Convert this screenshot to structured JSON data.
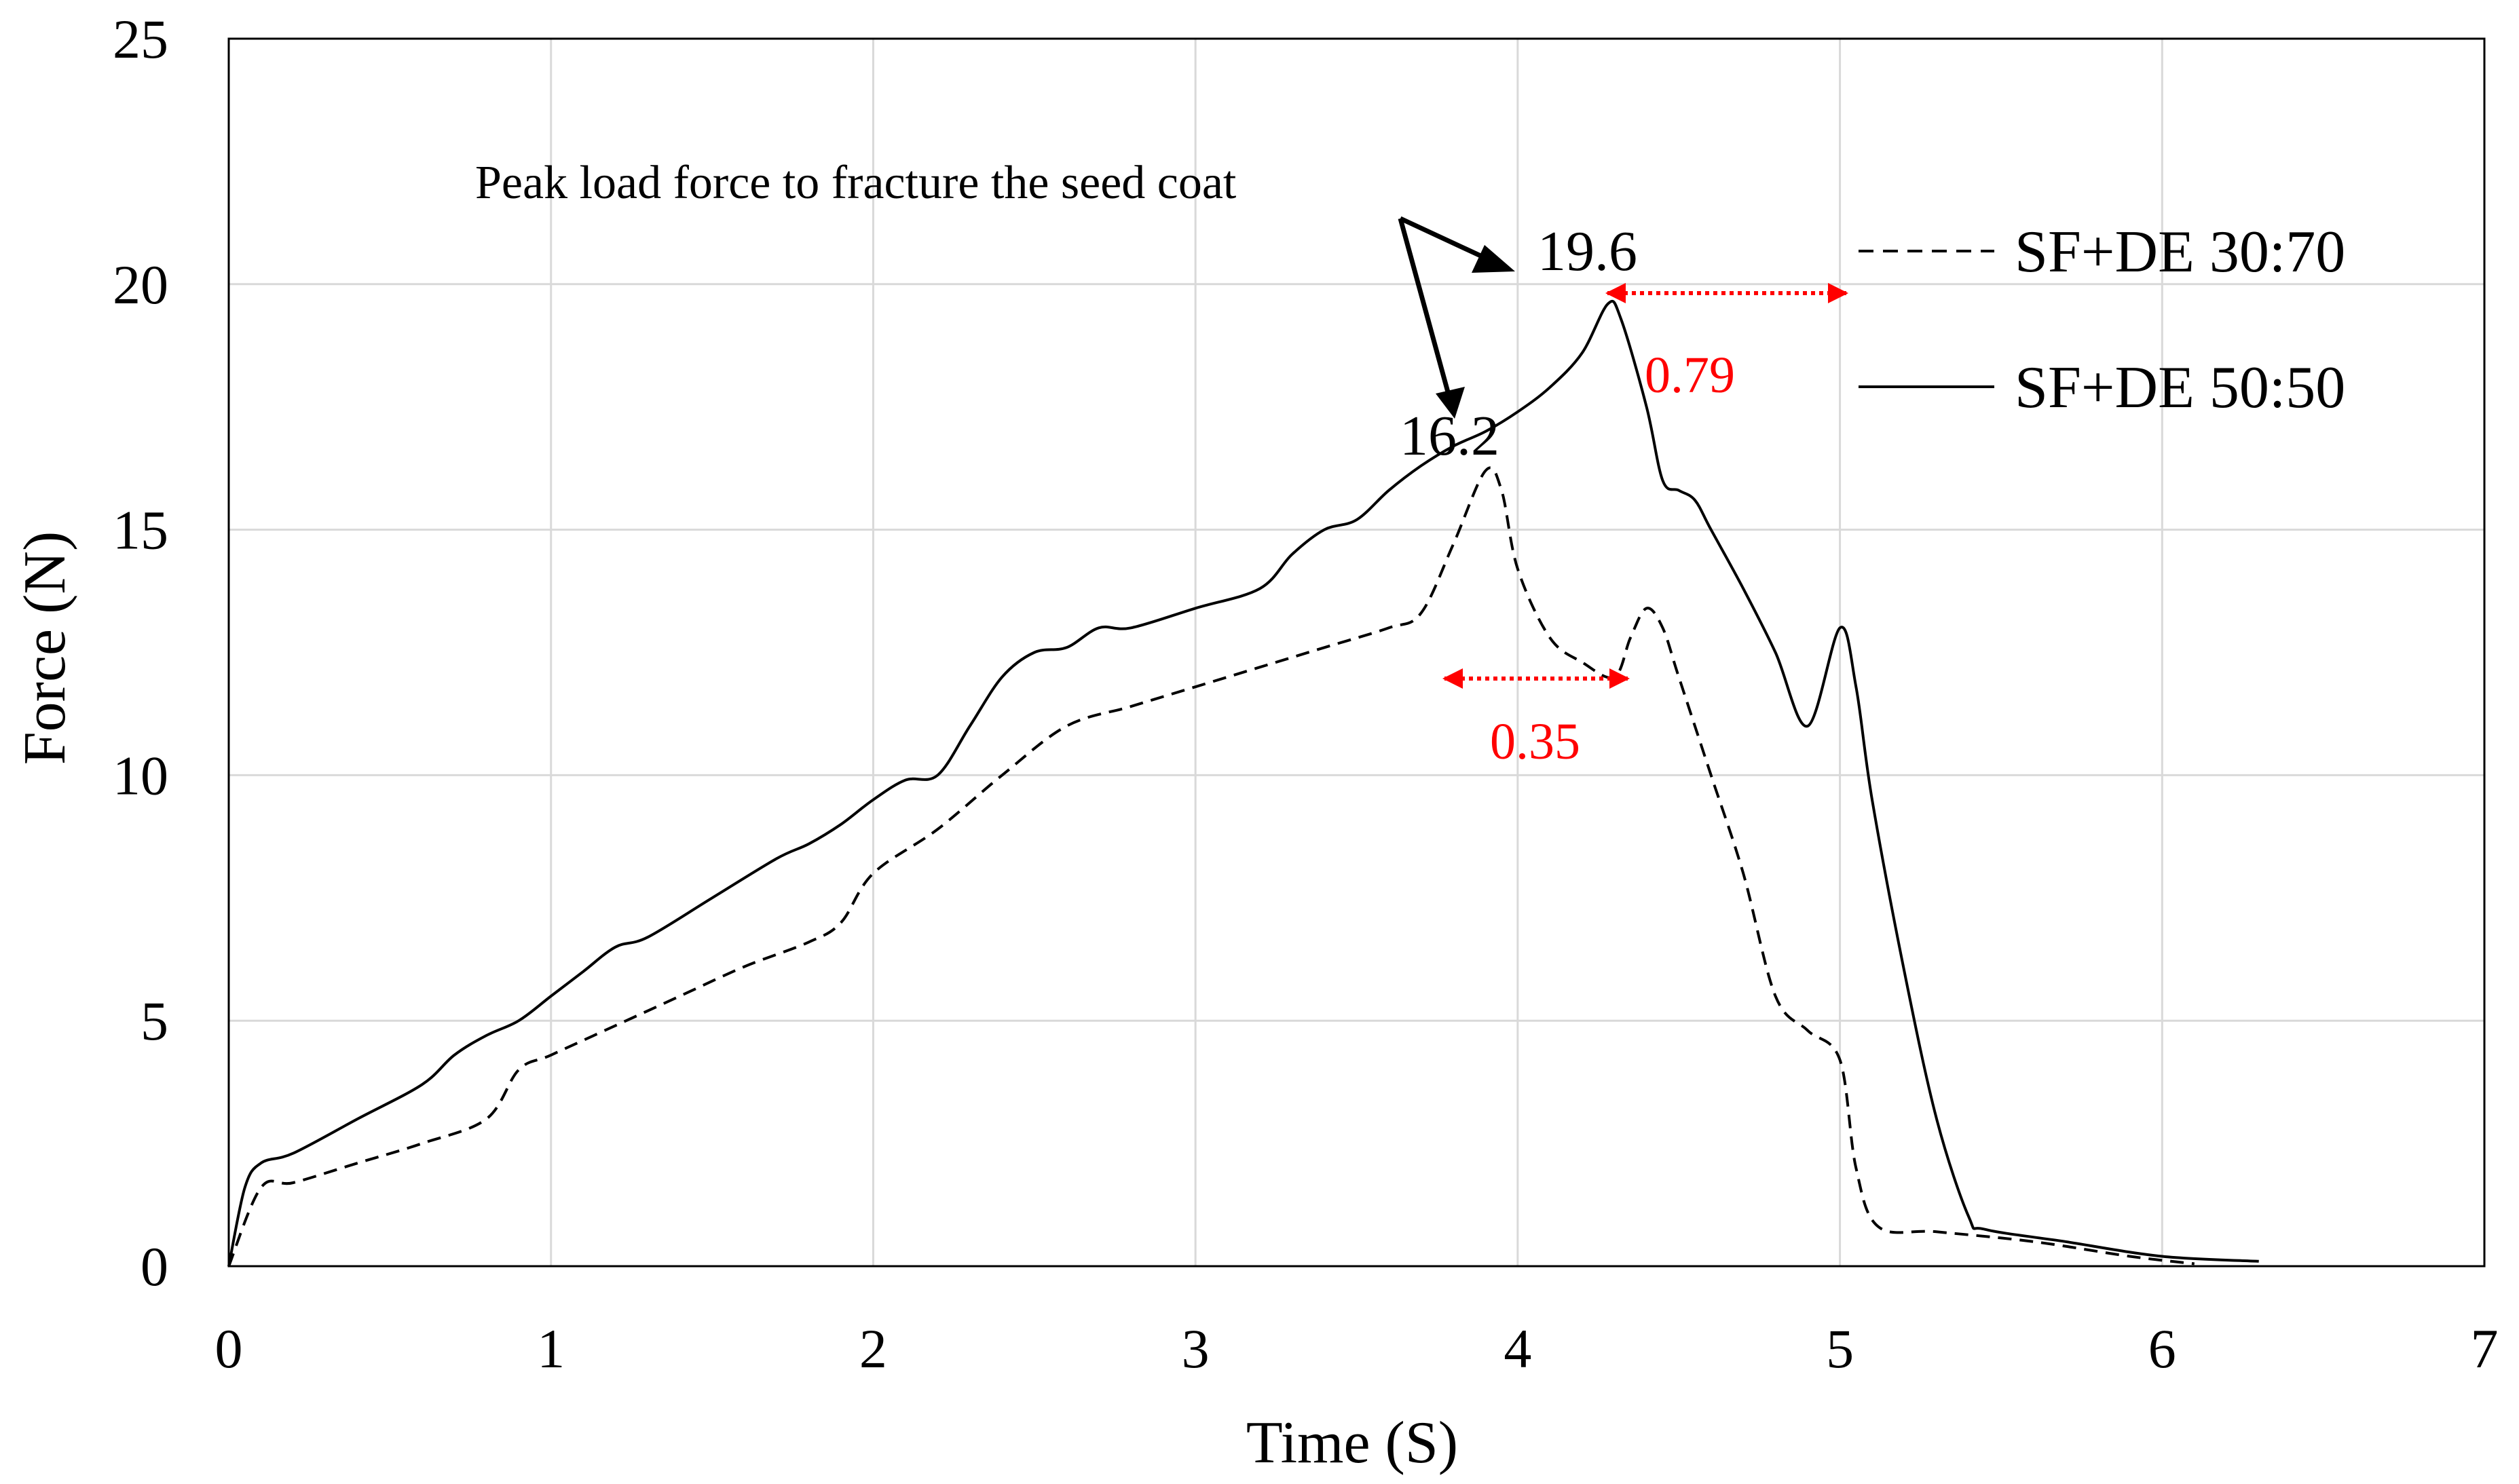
{
  "chart_data": {
    "type": "line",
    "title": "",
    "xlabel": "Time (S)",
    "ylabel": "Force (N)",
    "xlim": [
      0,
      7
    ],
    "ylim": [
      0,
      25
    ],
    "xticks": [
      0,
      1,
      2,
      3,
      4,
      5,
      6,
      7
    ],
    "yticks": [
      0,
      5,
      10,
      15,
      20,
      25
    ],
    "grid": true,
    "legend_position": "top-right",
    "series": [
      {
        "name": "SF+DE 30:70",
        "style": "dashed",
        "color": "#000000",
        "points": [
          [
            0,
            0
          ],
          [
            0.1,
            1.6
          ],
          [
            0.2,
            1.7
          ],
          [
            0.4,
            2.1
          ],
          [
            0.6,
            2.5
          ],
          [
            0.8,
            3.0
          ],
          [
            0.9,
            4.0
          ],
          [
            1.0,
            4.3
          ],
          [
            1.2,
            4.9
          ],
          [
            1.4,
            5.5
          ],
          [
            1.6,
            6.1
          ],
          [
            1.8,
            6.6
          ],
          [
            1.9,
            7.0
          ],
          [
            2.0,
            8.0
          ],
          [
            2.2,
            8.9
          ],
          [
            2.4,
            10.0
          ],
          [
            2.6,
            11.0
          ],
          [
            2.8,
            11.4
          ],
          [
            3.0,
            11.8
          ],
          [
            3.2,
            12.2
          ],
          [
            3.4,
            12.6
          ],
          [
            3.6,
            13.0
          ],
          [
            3.7,
            13.3
          ],
          [
            3.8,
            14.7
          ],
          [
            3.9,
            16.2
          ],
          [
            3.95,
            15.8
          ],
          [
            4.0,
            14.2
          ],
          [
            4.1,
            12.8
          ],
          [
            4.2,
            12.3
          ],
          [
            4.3,
            12.0
          ],
          [
            4.35,
            12.8
          ],
          [
            4.4,
            13.4
          ],
          [
            4.45,
            13.0
          ],
          [
            4.5,
            12.0
          ],
          [
            4.6,
            10.0
          ],
          [
            4.7,
            8.0
          ],
          [
            4.8,
            5.5
          ],
          [
            4.9,
            4.8
          ],
          [
            5.0,
            4.2
          ],
          [
            5.05,
            2.0
          ],
          [
            5.12,
            0.8
          ],
          [
            5.3,
            0.7
          ],
          [
            5.6,
            0.5
          ],
          [
            5.9,
            0.2
          ],
          [
            6.1,
            0.05
          ]
        ]
      },
      {
        "name": "SF+DE 50:50",
        "style": "solid",
        "color": "#000000",
        "points": [
          [
            0,
            0
          ],
          [
            0.05,
            1.6
          ],
          [
            0.1,
            2.1
          ],
          [
            0.2,
            2.3
          ],
          [
            0.4,
            3.0
          ],
          [
            0.6,
            3.7
          ],
          [
            0.7,
            4.3
          ],
          [
            0.8,
            4.7
          ],
          [
            0.9,
            5.0
          ],
          [
            1.0,
            5.5
          ],
          [
            1.1,
            6.0
          ],
          [
            1.2,
            6.5
          ],
          [
            1.3,
            6.7
          ],
          [
            1.5,
            7.5
          ],
          [
            1.7,
            8.3
          ],
          [
            1.8,
            8.6
          ],
          [
            1.9,
            9.0
          ],
          [
            2.0,
            9.5
          ],
          [
            2.1,
            9.9
          ],
          [
            2.2,
            10.0
          ],
          [
            2.3,
            11.0
          ],
          [
            2.4,
            12.0
          ],
          [
            2.5,
            12.5
          ],
          [
            2.6,
            12.6
          ],
          [
            2.7,
            13.0
          ],
          [
            2.8,
            13.0
          ],
          [
            3.0,
            13.4
          ],
          [
            3.2,
            13.8
          ],
          [
            3.3,
            14.5
          ],
          [
            3.4,
            15.0
          ],
          [
            3.5,
            15.2
          ],
          [
            3.6,
            15.8
          ],
          [
            3.7,
            16.3
          ],
          [
            3.8,
            16.7
          ],
          [
            3.9,
            17.0
          ],
          [
            4.0,
            17.4
          ],
          [
            4.1,
            17.9
          ],
          [
            4.2,
            18.6
          ],
          [
            4.28,
            19.6
          ],
          [
            4.32,
            19.3
          ],
          [
            4.4,
            17.5
          ],
          [
            4.45,
            16.0
          ],
          [
            4.5,
            15.8
          ],
          [
            4.55,
            15.6
          ],
          [
            4.6,
            15.0
          ],
          [
            4.7,
            13.8
          ],
          [
            4.8,
            12.5
          ],
          [
            4.9,
            11.0
          ],
          [
            5.0,
            13.0
          ],
          [
            5.05,
            11.8
          ],
          [
            5.1,
            9.5
          ],
          [
            5.2,
            6.0
          ],
          [
            5.3,
            3.0
          ],
          [
            5.4,
            1.0
          ],
          [
            5.45,
            0.75
          ],
          [
            5.7,
            0.5
          ],
          [
            6.0,
            0.2
          ],
          [
            6.3,
            0.1
          ]
        ]
      }
    ],
    "annotations": {
      "note": "Peak load force to fracture the seed coat",
      "peak_50_50": "19.6",
      "peak_30_70": "16.2",
      "interval_50_50": "0.79",
      "interval_30_70": "0.35"
    }
  }
}
